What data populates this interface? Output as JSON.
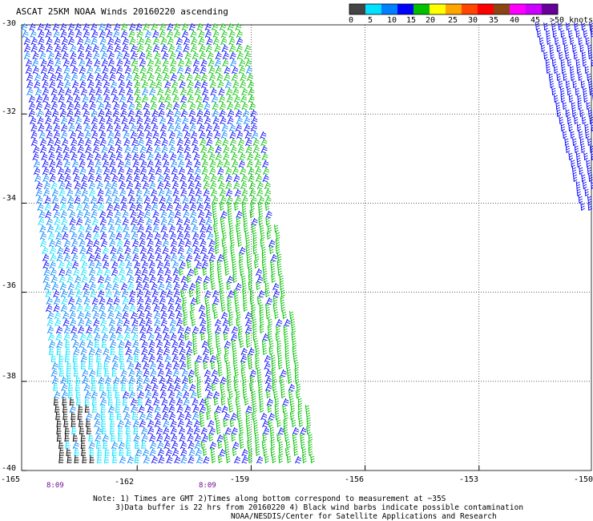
{
  "header": {
    "title": "ASCAT 25KM NOAA Winds 20160220 ascending"
  },
  "legend": {
    "colors": [
      "#444444",
      "#00e0ff",
      "#0080ff",
      "#0000ff",
      "#00c000",
      "#ffff00",
      "#ffa500",
      "#ff4500",
      "#ff0000",
      "#8b4513",
      "#ff00ff",
      "#cc00ff",
      "#660099"
    ],
    "labels": [
      "0",
      "5",
      "10",
      "15",
      "20",
      "25",
      "30",
      "35",
      "40",
      "45",
      ">50 knots"
    ]
  },
  "axes": {
    "y_labels": [
      "-30",
      "-32",
      "-34",
      "-36",
      "-38",
      "-40"
    ],
    "x_labels": [
      "-165",
      "-162",
      "-159",
      "-156",
      "-153",
      "-150"
    ]
  },
  "time_labels": [
    "8:09",
    "8:09"
  ],
  "notes": {
    "line1": "Note: 1) Times are GMT 2)Times along bottom correspond to measurement at ~35S",
    "line2": "3)Data buffer is 22 hrs from 20160220 4) Black wind barbs indicate possible contamination",
    "line3": "NOAA/NESDIS/Center for Satellite Applications and Research"
  },
  "map": {
    "lat_range": [
      -40,
      -30
    ],
    "lon_range": [
      -165,
      -150
    ],
    "gridlines": "dotted"
  }
}
